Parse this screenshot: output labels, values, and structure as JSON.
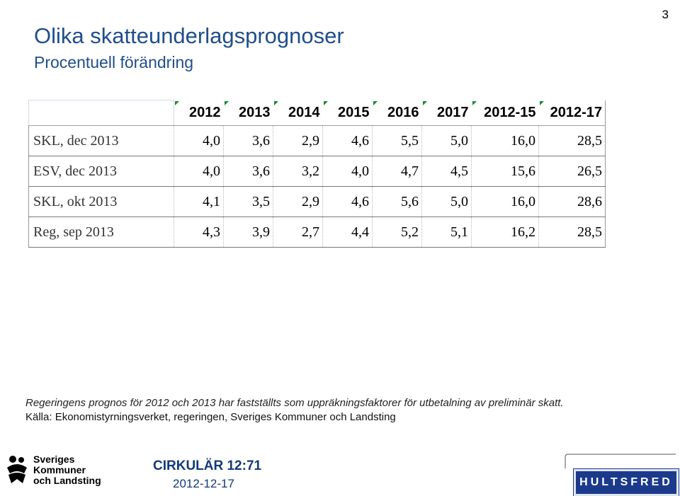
{
  "page_number": "3",
  "title": "Olika skatteunderlagsprognoser",
  "subtitle": "Procentuell förändring",
  "table": {
    "headers": [
      "2012",
      "2013",
      "2014",
      "2015",
      "2016",
      "2017",
      "2012-15",
      "2012-17"
    ],
    "rows": [
      {
        "label": "SKL, dec 2013",
        "values": [
          "4,0",
          "3,6",
          "2,9",
          "4,6",
          "5,5",
          "5,0",
          "16,0",
          "28,5"
        ]
      },
      {
        "label": "ESV, dec 2013",
        "values": [
          "4,0",
          "3,6",
          "3,2",
          "4,0",
          "4,7",
          "4,5",
          "15,6",
          "26,5"
        ]
      },
      {
        "label": "SKL, okt 2013",
        "values": [
          "4,1",
          "3,5",
          "2,9",
          "4,6",
          "5,6",
          "5,0",
          "16,0",
          "28,6"
        ]
      },
      {
        "label": "Reg, sep 2013",
        "values": [
          "4,3",
          "3,9",
          "2,7",
          "4,4",
          "5,2",
          "5,1",
          "16,2",
          "28,5"
        ]
      }
    ]
  },
  "note": "Regeringens prognos för 2012 och 2013 har fastställts som uppräkningsfaktorer för utbetalning av preliminär skatt.",
  "source": "Källa: Ekonomistyrningsverket, regeringen, Sveriges Kommuner och Landsting",
  "footer": {
    "circular": "CIRKULÄR 12:71",
    "date": "2012-12-17",
    "skl_logo_lines": [
      "Sveriges",
      "Kommuner",
      "och Landsting"
    ],
    "hultsfred_logo": "HULTSFRED"
  },
  "colors": {
    "title": "#1f4e8c",
    "footer_text": "#123a7a",
    "hultsfred_blue": "#1c3a8c",
    "cell_marker": "#1a8a2a"
  }
}
